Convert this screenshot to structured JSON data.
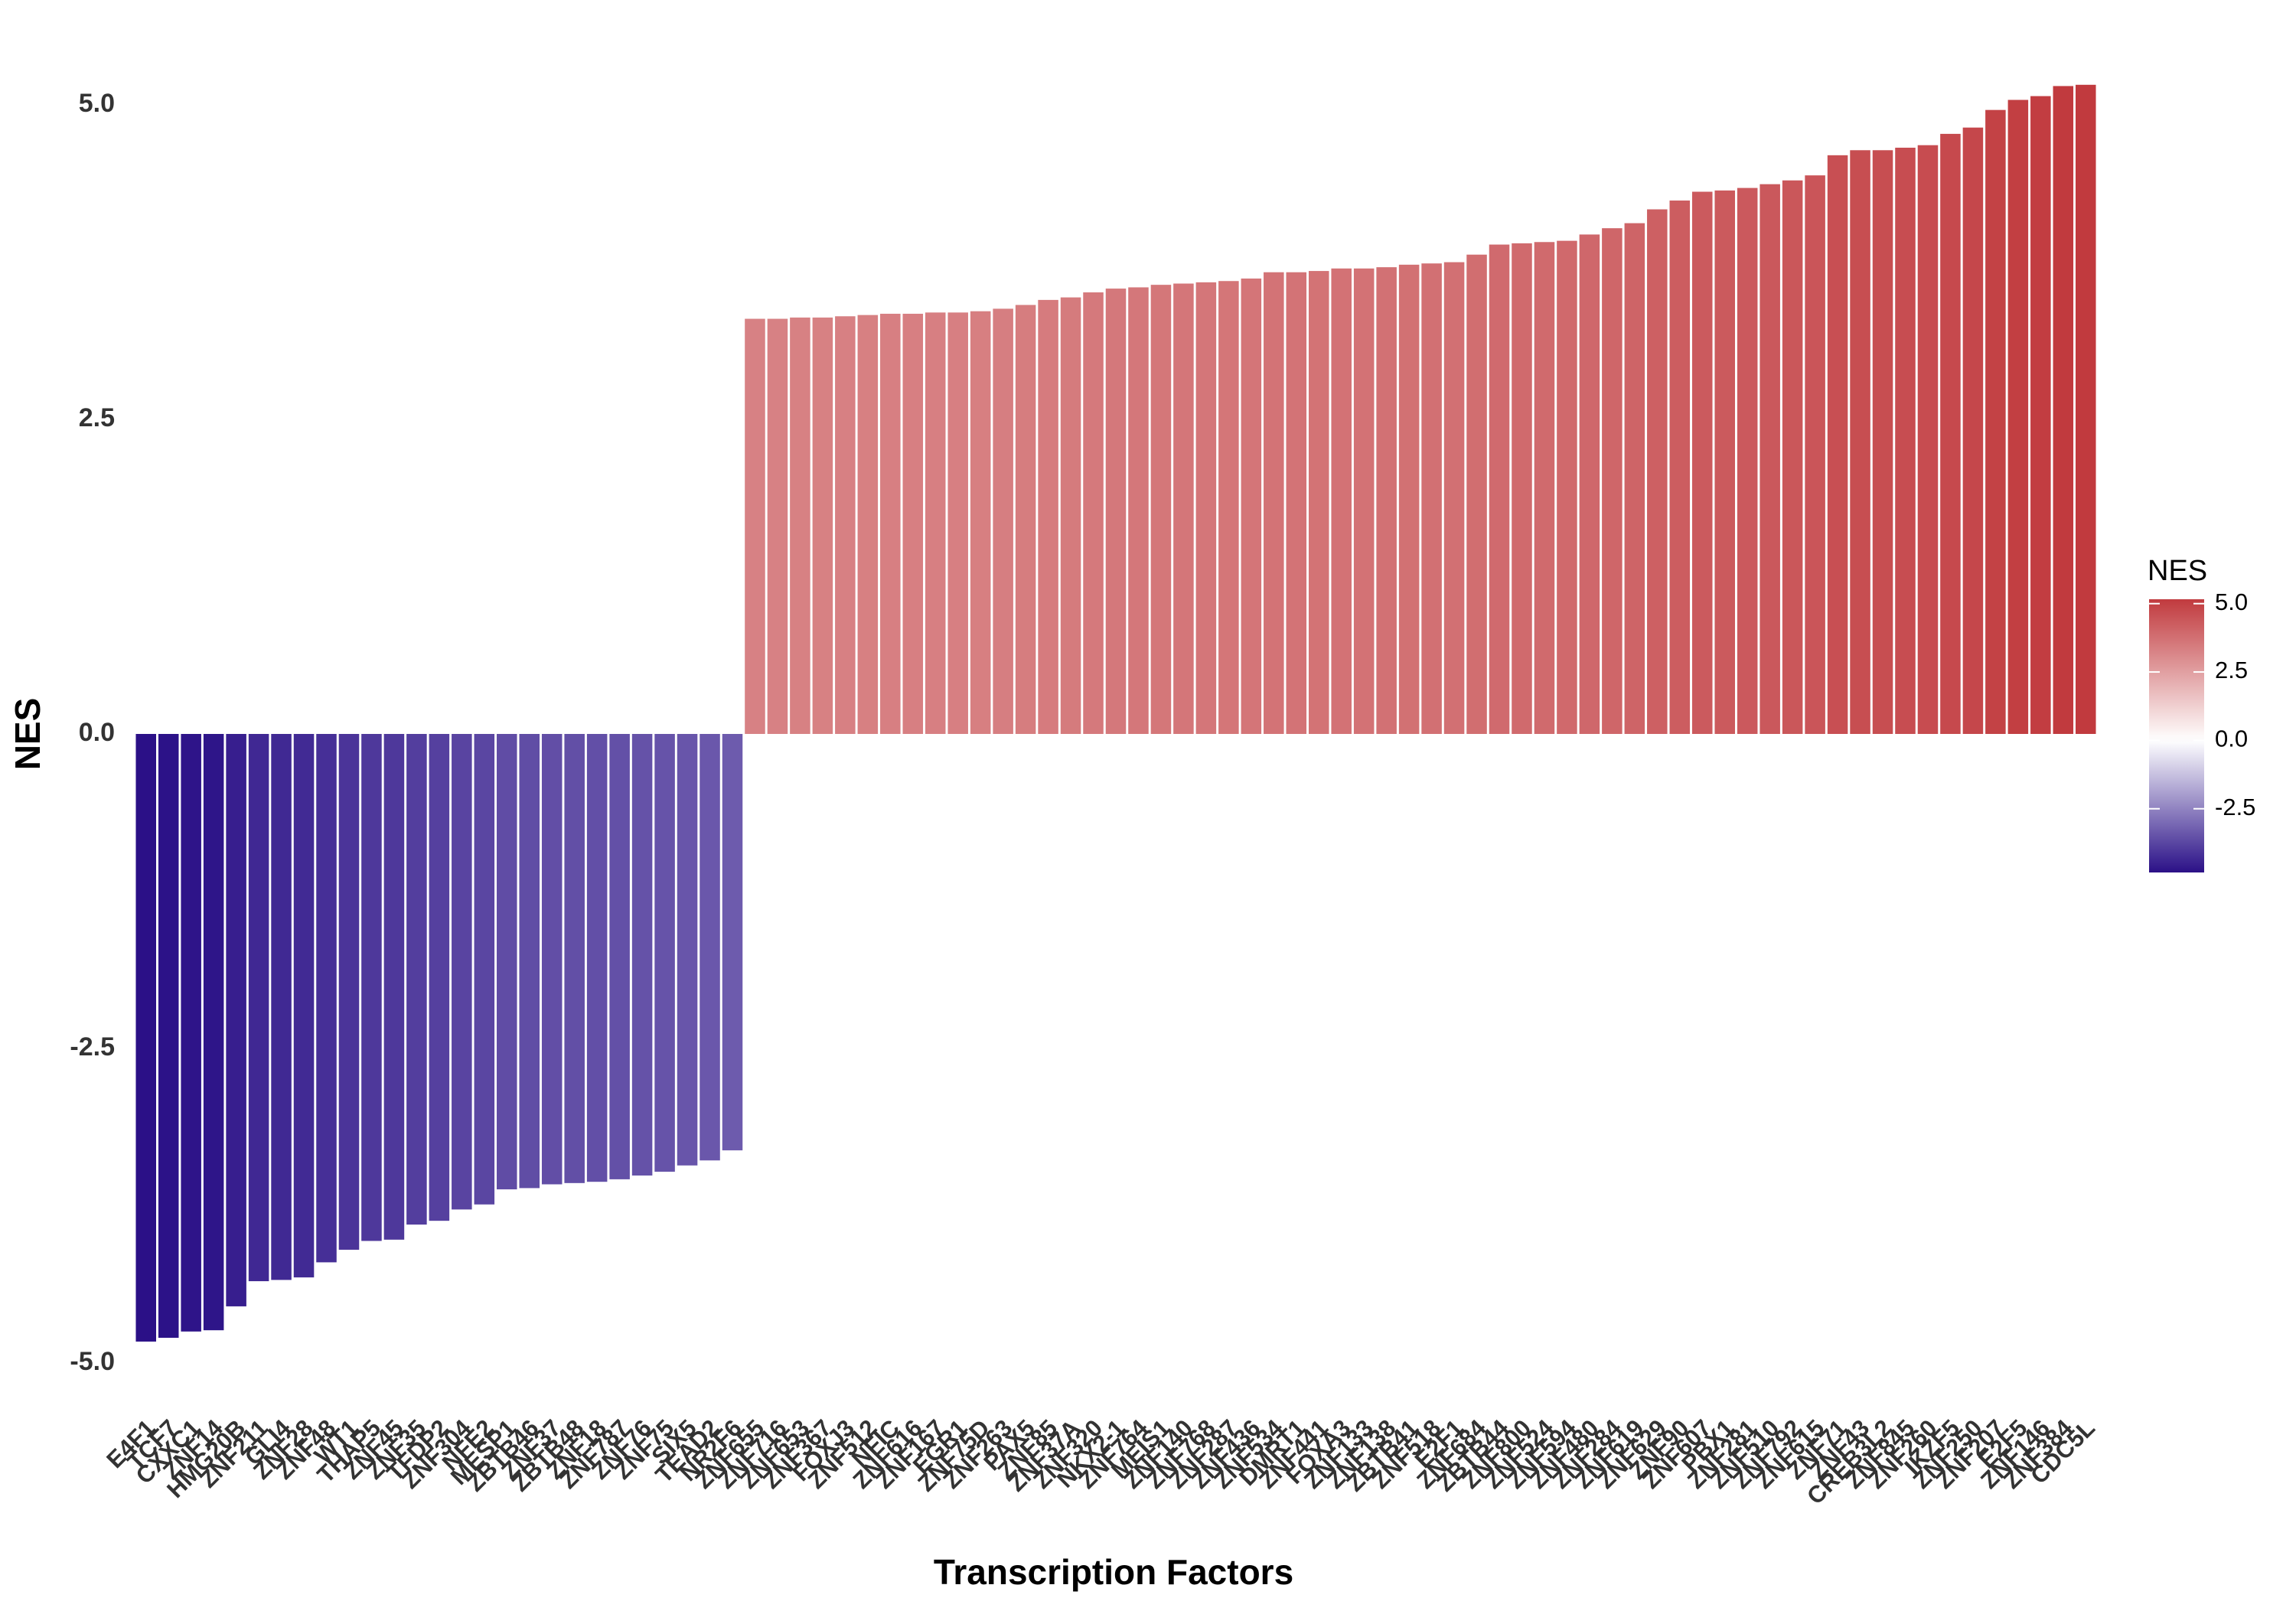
{
  "chart_data": {
    "type": "bar",
    "x_label": "Transcription Factors",
    "y_label": "NES",
    "legend_title": "NES",
    "categories": [
      "E4F1",
      "TCF7",
      "CXXC1",
      "ZNF14",
      "HMG20B",
      "ZNF211",
      "GLI4",
      "ZNF28",
      "ZNF48",
      "WT1",
      "THAP5",
      "ZNF45",
      "ZNF35",
      "TFDP2",
      "ZNF304",
      "NFE2",
      "MESP1",
      "ZBTB46",
      "ZNF37",
      "ZBTB48",
      "ZNF18",
      "ZNF787",
      "ZNF76",
      "ZNF75",
      "SIX5",
      "TEAD2",
      "NR2F6",
      "ZNF655",
      "ZNF716",
      "ZNF653",
      "ZNF367",
      "FOXJ3",
      "ZNF512",
      "NFIC",
      "ZNF616",
      "ZNF167",
      "EGR1",
      "ZNF75D",
      "ZNF263",
      "PAX5",
      "ZNF85",
      "ZNF37A",
      "ZNF320",
      "NKX2-1",
      "ZNF764",
      "MEIS1",
      "ZNF140",
      "ZNF768",
      "ZNF287",
      "ZNF436",
      "ZNF534",
      "DMRT1",
      "ZNF441",
      "FOXA3",
      "ZNF133",
      "ZNF138",
      "ZBTB41",
      "ZNF518",
      "E2F1",
      "ZNF684",
      "ZBTB44",
      "ZNF800",
      "ZNF524",
      "ZNF594",
      "ZNF480",
      "ZNF284",
      "ZNF619",
      "ZNF629",
      "ZNF90",
      "ZNF607",
      "PBX1",
      "ZNF281",
      "ZNF510",
      "ZNF792",
      "ZNF615",
      "ZNF71",
      "ZNF43",
      "CREB3L2",
      "ZNF845",
      "ZNF260",
      "IKZF5",
      "ZNF250",
      "ZNF207",
      "E2F5",
      "ZNF146",
      "ZNF384",
      "CDC5L"
    ],
    "values": [
      -4.83,
      -4.8,
      -4.75,
      -4.74,
      -4.55,
      -4.35,
      -4.34,
      -4.32,
      -4.2,
      -4.1,
      -4.03,
      -4.02,
      -3.9,
      -3.87,
      -3.78,
      -3.74,
      -3.62,
      -3.61,
      -3.58,
      -3.57,
      -3.56,
      -3.54,
      -3.51,
      -3.48,
      -3.43,
      -3.39,
      -3.31,
      3.3,
      3.3,
      3.31,
      3.31,
      3.32,
      3.33,
      3.34,
      3.34,
      3.35,
      3.35,
      3.36,
      3.38,
      3.41,
      3.45,
      3.47,
      3.51,
      3.54,
      3.55,
      3.57,
      3.58,
      3.59,
      3.6,
      3.62,
      3.67,
      3.67,
      3.68,
      3.7,
      3.7,
      3.71,
      3.73,
      3.74,
      3.75,
      3.81,
      3.89,
      3.9,
      3.91,
      3.92,
      3.97,
      4.02,
      4.06,
      4.17,
      4.24,
      4.31,
      4.32,
      4.34,
      4.37,
      4.4,
      4.44,
      4.6,
      4.64,
      4.64,
      4.66,
      4.68,
      4.77,
      4.82,
      4.96,
      5.04,
      5.07,
      5.15,
      5.16
    ],
    "colors": {
      "low": "#1c007f",
      "mid": "#ffffff",
      "high": "#c13a3e"
    },
    "ylim": [
      -5.25,
      5.25
    ],
    "yticks": [
      {
        "value": -5,
        "label": "-5.0"
      },
      {
        "value": -2.5,
        "label": "-2.5"
      },
      {
        "value": 0,
        "label": "0.0"
      },
      {
        "value": 2.5,
        "label": "2.5"
      },
      {
        "value": 5,
        "label": "5.0"
      }
    ],
    "legend_ticks": [
      {
        "value": -2.5,
        "label": "-2.5"
      },
      {
        "value": 0,
        "label": "0.0"
      },
      {
        "value": 2.5,
        "label": "2.5"
      },
      {
        "value": 5,
        "label": "5.0"
      }
    ],
    "grid": false
  }
}
